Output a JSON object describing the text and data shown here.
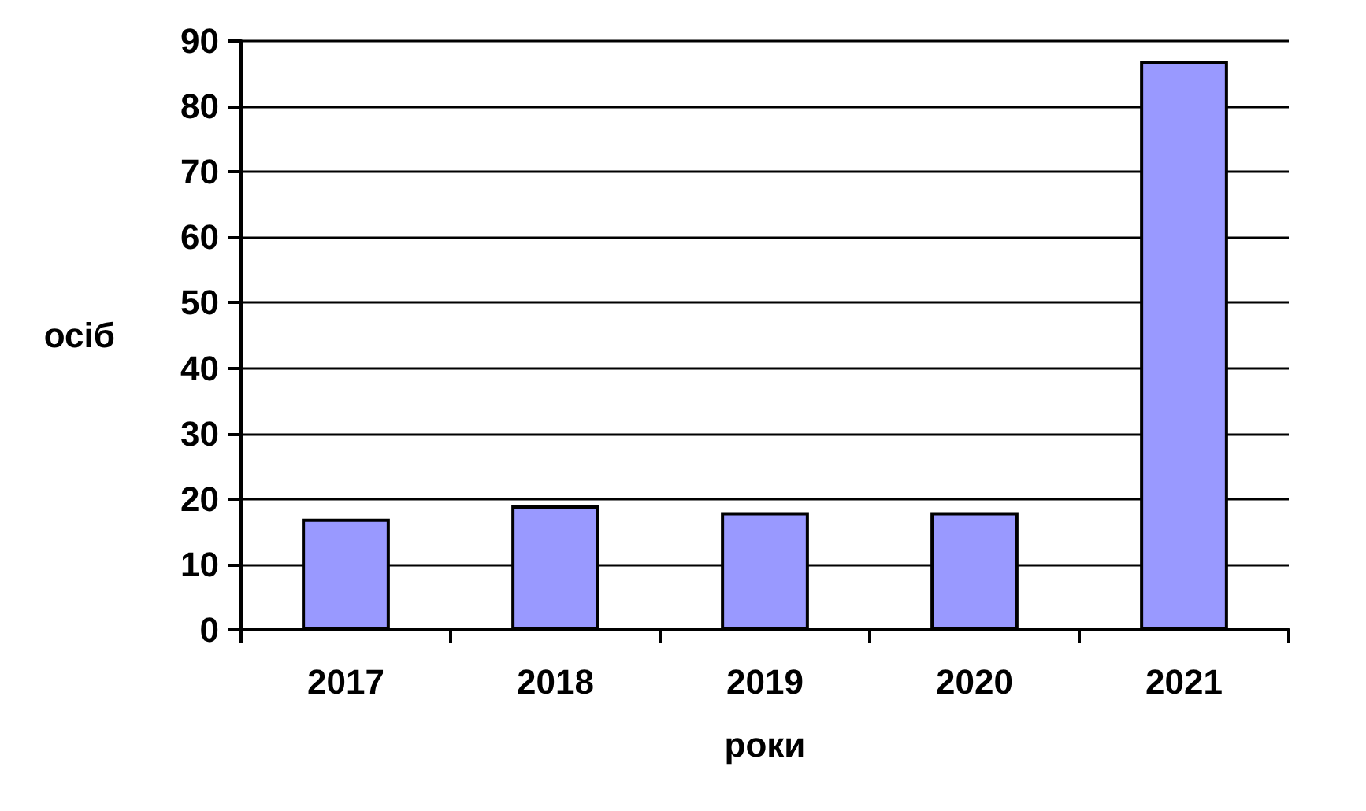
{
  "chart_data": {
    "type": "bar",
    "xlabel": "роки",
    "ylabel": "осіб",
    "categories": [
      "2017",
      "2018",
      "2019",
      "2020",
      "2021"
    ],
    "values": [
      17,
      19,
      18,
      18,
      87
    ],
    "color": "#9999ff",
    "ylim": [
      0,
      90
    ],
    "yticks": [
      0,
      10,
      20,
      30,
      40,
      50,
      60,
      70,
      80,
      90
    ],
    "grid": "y"
  }
}
